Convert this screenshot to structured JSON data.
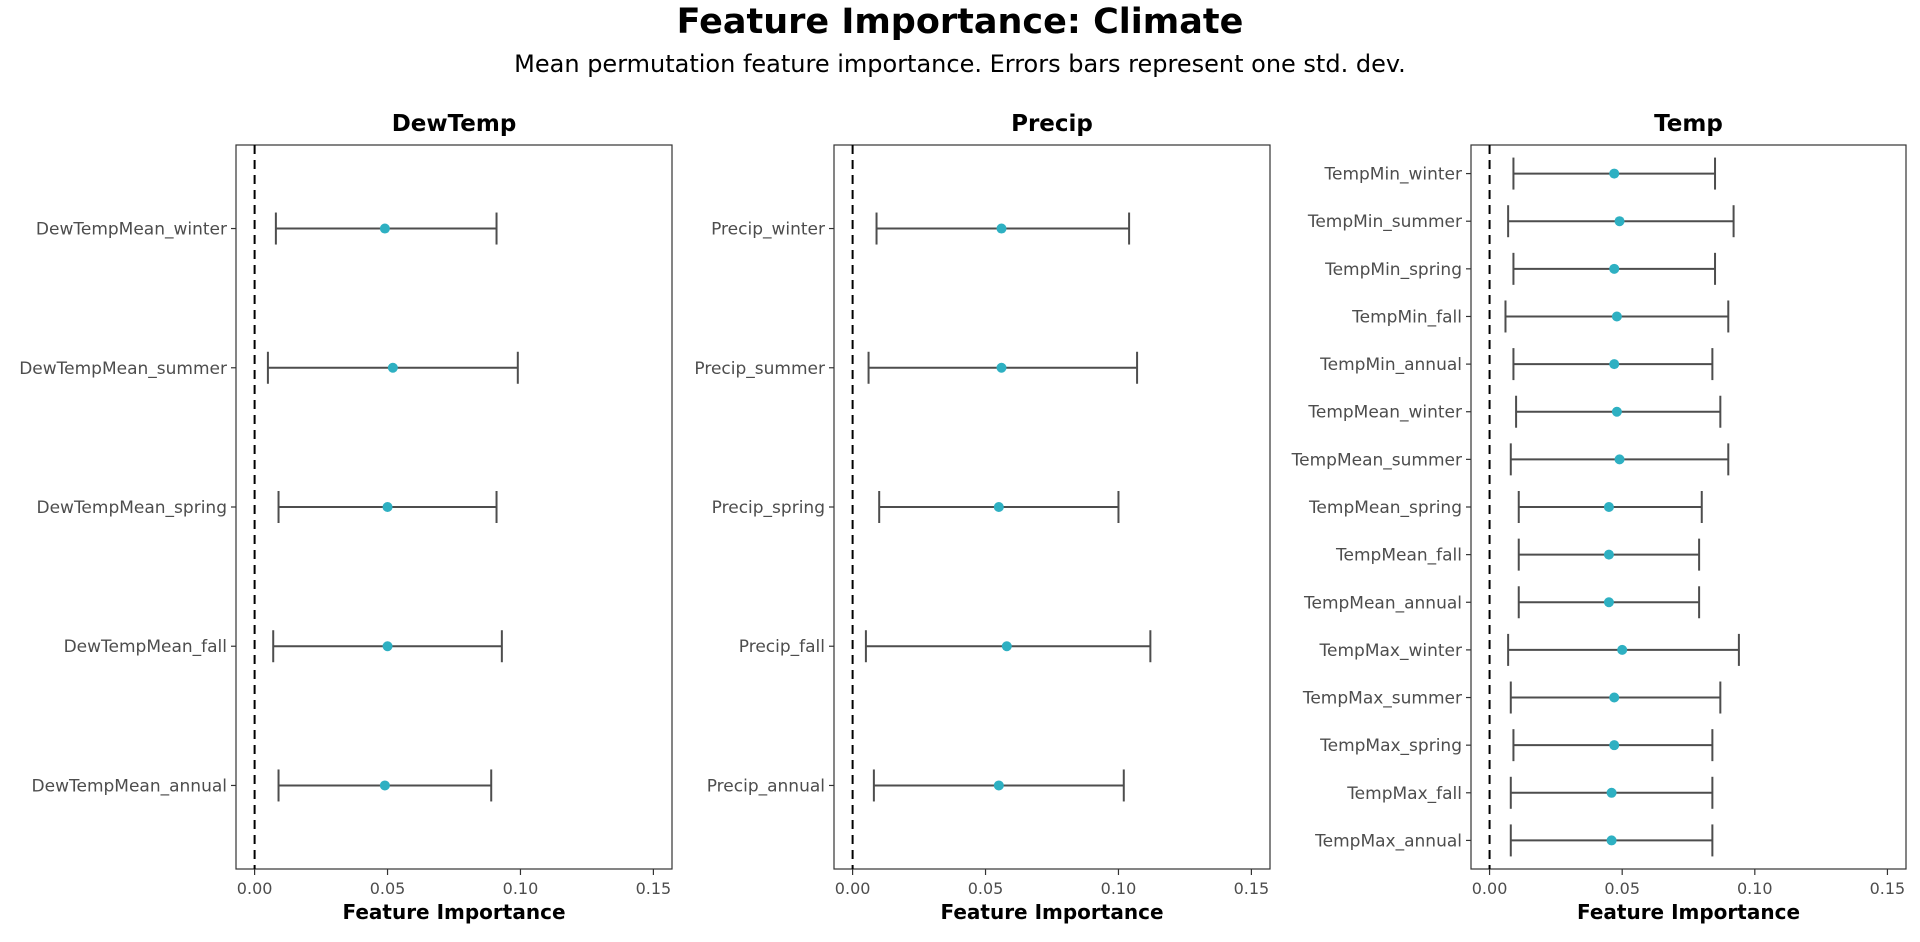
{
  "title": "Feature Importance: Climate",
  "subtitle": "Mean permutation feature importance. Errors bars represent one std. dev.",
  "colors": {
    "point": "#2EB0C2",
    "bar": "#4d4d4d",
    "zero_line": "#000000",
    "panel_border": "#333333"
  },
  "chart_data": [
    {
      "type": "scatter",
      "title": "DewTemp",
      "xlabel": "Feature Importance",
      "xlim": [
        -0.007,
        0.157
      ],
      "xticks": [
        0.0,
        0.05,
        0.1,
        0.15
      ],
      "xtick_labels": [
        "0.00",
        "0.05",
        "0.10",
        "0.15"
      ],
      "reference_line": {
        "x": 0.0,
        "style": "dashed"
      },
      "grid": false,
      "categories": [
        "DewTempMean_winter",
        "DewTempMean_summer",
        "DewTempMean_spring",
        "DewTempMean_fall",
        "DewTempMean_annual"
      ],
      "means": [
        0.049,
        0.052,
        0.05,
        0.05,
        0.049
      ],
      "lower": [
        0.008,
        0.005,
        0.009,
        0.007,
        0.009
      ],
      "upper": [
        0.091,
        0.099,
        0.091,
        0.093,
        0.089
      ]
    },
    {
      "type": "scatter",
      "title": "Precip",
      "xlabel": "Feature Importance",
      "xlim": [
        -0.007,
        0.157
      ],
      "xticks": [
        0.0,
        0.05,
        0.1,
        0.15
      ],
      "xtick_labels": [
        "0.00",
        "0.05",
        "0.10",
        "0.15"
      ],
      "reference_line": {
        "x": 0.0,
        "style": "dashed"
      },
      "grid": false,
      "categories": [
        "Precip_winter",
        "Precip_summer",
        "Precip_spring",
        "Precip_fall",
        "Precip_annual"
      ],
      "means": [
        0.056,
        0.056,
        0.055,
        0.058,
        0.055
      ],
      "lower": [
        0.009,
        0.006,
        0.01,
        0.005,
        0.008
      ],
      "upper": [
        0.104,
        0.107,
        0.1,
        0.112,
        0.102
      ]
    },
    {
      "type": "scatter",
      "title": "Temp",
      "xlabel": "Feature Importance",
      "xlim": [
        -0.007,
        0.157
      ],
      "xticks": [
        0.0,
        0.05,
        0.1,
        0.15
      ],
      "xtick_labels": [
        "0.00",
        "0.05",
        "0.10",
        "0.15"
      ],
      "reference_line": {
        "x": 0.0,
        "style": "dashed"
      },
      "grid": false,
      "categories": [
        "TempMin_winter",
        "TempMin_summer",
        "TempMin_spring",
        "TempMin_fall",
        "TempMin_annual",
        "TempMean_winter",
        "TempMean_summer",
        "TempMean_spring",
        "TempMean_fall",
        "TempMean_annual",
        "TempMax_winter",
        "TempMax_summer",
        "TempMax_spring",
        "TempMax_fall",
        "TempMax_annual"
      ],
      "means": [
        0.047,
        0.049,
        0.047,
        0.048,
        0.047,
        0.048,
        0.049,
        0.045,
        0.045,
        0.045,
        0.05,
        0.047,
        0.047,
        0.046,
        0.046
      ],
      "lower": [
        0.009,
        0.007,
        0.009,
        0.006,
        0.009,
        0.01,
        0.008,
        0.011,
        0.011,
        0.011,
        0.007,
        0.008,
        0.009,
        0.008,
        0.008
      ],
      "upper": [
        0.085,
        0.092,
        0.085,
        0.09,
        0.084,
        0.087,
        0.09,
        0.08,
        0.079,
        0.079,
        0.094,
        0.087,
        0.084,
        0.084,
        0.084
      ]
    }
  ]
}
